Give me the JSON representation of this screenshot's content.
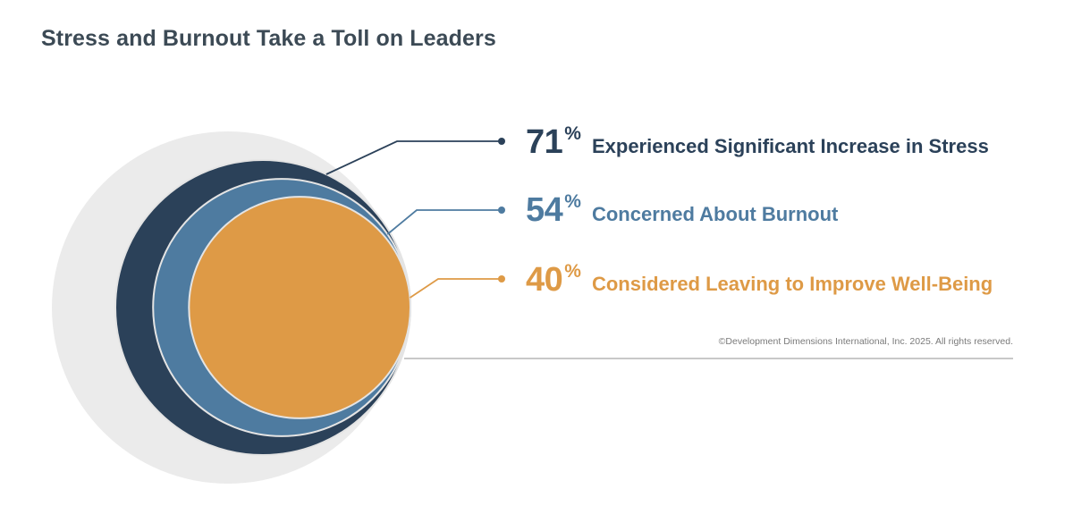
{
  "title": "Stress and Burnout Take a Toll on Leaders",
  "chart_data": {
    "type": "nested-circles",
    "title": "Stress and Burnout Take a Toll on Leaders",
    "unit": "%",
    "items": [
      {
        "value": 71,
        "label": "Experienced Significant Increase in Stress",
        "color": "#2b4159"
      },
      {
        "value": 54,
        "label": "Concerned About Burnout",
        "color": "#4e7ba0"
      },
      {
        "value": 40,
        "label": "Considered Leaving to Improve Well-Being",
        "color": "#de9a46"
      }
    ]
  },
  "stats": [
    {
      "value": "71",
      "unit": "%",
      "label": "Experienced Significant Increase in Stress"
    },
    {
      "value": "54",
      "unit": "%",
      "label": "Concerned About Burnout"
    },
    {
      "value": "40",
      "unit": "%",
      "label": "Considered Leaving to Improve Well-Being"
    }
  ],
  "colors": {
    "background_circle": "#ebebeb",
    "title": "#3c4a55",
    "divider": "#b5b5b5"
  },
  "copyright": "©Development Dimensions International, Inc. 2025. All rights reserved."
}
